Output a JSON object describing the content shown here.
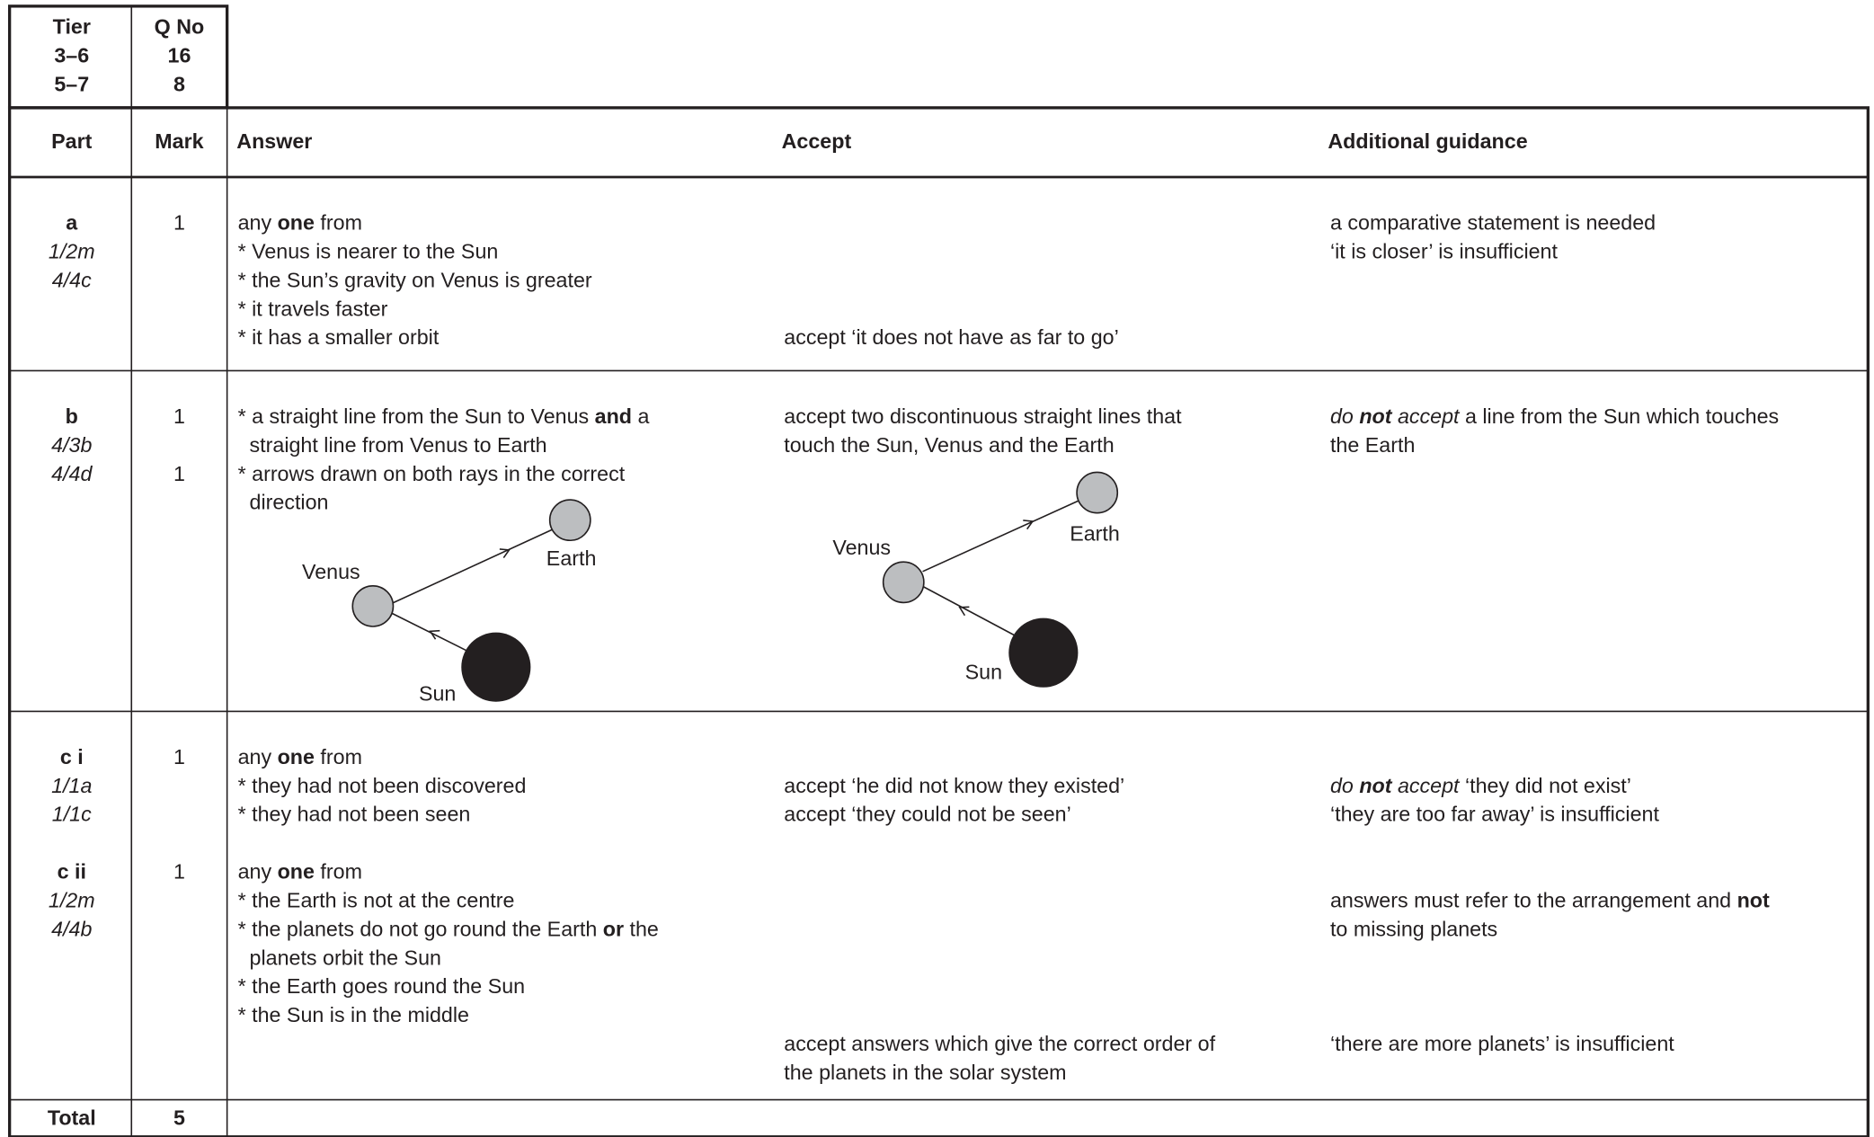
{
  "header": {
    "tier_label": "Tier",
    "tiers": [
      "3–6",
      "5–7"
    ],
    "qno_label": "Q No",
    "qnos": [
      "16",
      "8"
    ]
  },
  "table": {
    "columns": [
      "Part",
      "Mark",
      "Answer",
      "Accept",
      "Additional guidance"
    ],
    "rows": [
      {
        "subparts": [
          {
            "part": "a",
            "codes": [
              "1/2m",
              "4/4c"
            ],
            "marks": [
              1
            ],
            "answer": [
              [
                "any ",
                {
                  "text": "one",
                  "bold": true
                },
                " from"
              ],
              [
                "* Venus is nearer to the Sun"
              ],
              [
                "* the Sun’s gravity on Venus is greater"
              ],
              [
                "* it travels faster"
              ],
              [
                "* it has a smaller orbit"
              ]
            ],
            "accept": [
              null,
              null,
              null,
              null,
              [
                "accept ‘it does not have as far to go’"
              ]
            ],
            "guidance": [
              [
                "a comparative statement is needed"
              ],
              [
                "‘it is closer’ is insufficient"
              ]
            ]
          }
        ]
      },
      {
        "subparts": [
          {
            "part": "b",
            "codes": [
              "4/3b",
              "4/4d"
            ],
            "marks": [
              1,
              null,
              1
            ],
            "answer": [
              [
                "* a straight line from the Sun to Venus ",
                {
                  "text": "and",
                  "bold": true
                },
                " a"
              ],
              [
                "  straight line from Venus to Earth"
              ],
              [
                "* arrows drawn on both rays in the correct"
              ],
              [
                "  direction"
              ]
            ],
            "accept": [
              [
                "accept two discontinuous straight lines that"
              ],
              [
                "touch the Sun, Venus and the Earth"
              ]
            ],
            "guidance": [
              [
                {
                  "text": "do ",
                  "italic": true
                },
                {
                  "text": "not",
                  "bold": true,
                  "italic": true
                },
                {
                  "text": " accept",
                  "italic": true
                },
                " a line from the Sun which touches"
              ],
              [
                "the Earth"
              ]
            ],
            "answer_diagram": {
              "venus": "Venus",
              "earth": "Earth",
              "sun": "Sun"
            },
            "accept_diagram": {
              "venus": "Venus",
              "earth": "Earth",
              "sun": "Sun"
            }
          }
        ]
      },
      {
        "subparts": [
          {
            "part": "c i",
            "codes": [
              "1/1a",
              "1/1c"
            ],
            "marks": [
              1
            ],
            "answer": [
              [
                "any ",
                {
                  "text": "one",
                  "bold": true
                },
                " from"
              ],
              [
                "* they had not been discovered"
              ],
              [
                "* they had not been seen"
              ]
            ],
            "accept": [
              null,
              [
                "accept ‘he did not know they existed’"
              ],
              [
                "accept ‘they could not be seen’"
              ]
            ],
            "guidance": [
              null,
              [
                {
                  "text": "do ",
                  "italic": true
                },
                {
                  "text": "not",
                  "bold": true,
                  "italic": true
                },
                {
                  "text": " accept",
                  "italic": true
                },
                " ‘they did not exist’"
              ],
              [
                "‘they are too far away’ is insufficient"
              ]
            ]
          },
          {
            "part": "c ii",
            "codes": [
              "1/2m",
              "4/4b"
            ],
            "marks": [
              1
            ],
            "answer": [
              [
                "any ",
                {
                  "text": "one",
                  "bold": true
                },
                " from"
              ],
              [
                "* the Earth is not at the centre"
              ],
              [
                "* the planets do not go round the Earth ",
                {
                  "text": "or",
                  "bold": true
                },
                " the"
              ],
              [
                "  planets orbit the Sun"
              ],
              [
                "* the Earth goes round the Sun"
              ],
              [
                "* the Sun is in the middle"
              ]
            ],
            "accept": [
              null,
              null,
              null,
              null,
              null,
              null,
              [
                "accept answers which give the correct order of"
              ],
              [
                "the planets in the solar system"
              ]
            ],
            "guidance": [
              null,
              [
                "answers must refer to the arrangement and ",
                {
                  "text": "not",
                  "bold": true
                }
              ],
              [
                "to missing planets"
              ],
              null,
              null,
              null,
              [
                "‘there are more planets’ is insufficient"
              ]
            ]
          }
        ]
      }
    ],
    "total_label": "Total",
    "total": 5
  }
}
